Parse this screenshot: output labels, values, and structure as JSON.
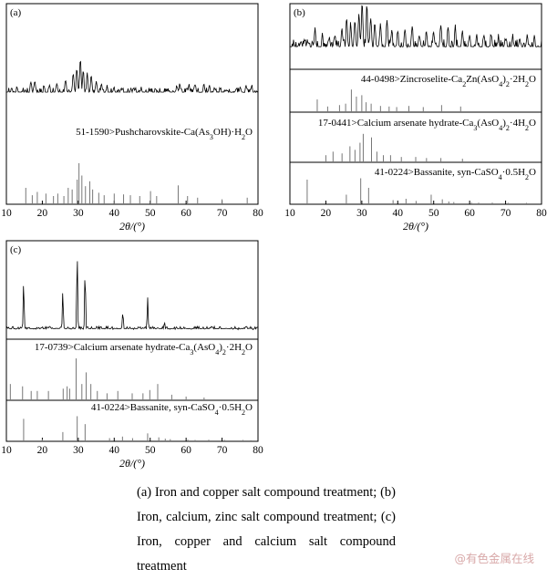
{
  "chart_data": [
    {
      "id": "a",
      "type": "line",
      "panel_label": "(a)",
      "xlabel": "2θ/(°)",
      "xlim": [
        10,
        80
      ],
      "xticks": [
        "10",
        "20",
        "30",
        "40",
        "50",
        "60",
        "70",
        "80"
      ],
      "pattern": {
        "description_baseline": 0.18,
        "peaks": [
          {
            "x": 11.5,
            "y": 0.28
          },
          {
            "x": 13.0,
            "y": 0.3
          },
          {
            "x": 14.5,
            "y": 0.22
          },
          {
            "x": 16.8,
            "y": 0.4
          },
          {
            "x": 17.9,
            "y": 0.38
          },
          {
            "x": 20.5,
            "y": 0.32
          },
          {
            "x": 22.0,
            "y": 0.3
          },
          {
            "x": 24.0,
            "y": 0.35
          },
          {
            "x": 26.5,
            "y": 0.42
          },
          {
            "x": 28.6,
            "y": 0.48
          },
          {
            "x": 29.6,
            "y": 0.58
          },
          {
            "x": 30.6,
            "y": 0.74
          },
          {
            "x": 31.4,
            "y": 0.55
          },
          {
            "x": 32.5,
            "y": 0.5
          },
          {
            "x": 33.6,
            "y": 0.46
          },
          {
            "x": 35.0,
            "y": 0.4
          },
          {
            "x": 36.5,
            "y": 0.34
          },
          {
            "x": 38.0,
            "y": 0.3
          },
          {
            "x": 40.0,
            "y": 0.28
          },
          {
            "x": 42.0,
            "y": 0.25
          },
          {
            "x": 45.5,
            "y": 0.3
          },
          {
            "x": 47.5,
            "y": 0.28
          },
          {
            "x": 50.0,
            "y": 0.26
          },
          {
            "x": 51.5,
            "y": 0.28
          },
          {
            "x": 55.0,
            "y": 0.27
          },
          {
            "x": 57.4,
            "y": 0.3
          },
          {
            "x": 58.2,
            "y": 0.34
          },
          {
            "x": 60.8,
            "y": 0.33
          },
          {
            "x": 62.5,
            "y": 0.33
          },
          {
            "x": 65.0,
            "y": 0.34
          },
          {
            "x": 66.5,
            "y": 0.3
          },
          {
            "x": 68.0,
            "y": 0.28
          },
          {
            "x": 71.0,
            "y": 0.25
          },
          {
            "x": 73.8,
            "y": 0.26
          },
          {
            "x": 75.0,
            "y": 0.3
          },
          {
            "x": 76.7,
            "y": 0.32
          },
          {
            "x": 78.3,
            "y": 0.3
          }
        ]
      },
      "references": [
        {
          "label": "51-1590>Pushcharovskite-Ca(As3OH)·H2O",
          "sticks": [
            {
              "x": 15.4,
              "h": 0.2
            },
            {
              "x": 17.2,
              "h": 0.11
            },
            {
              "x": 18.6,
              "h": 0.15
            },
            {
              "x": 21.0,
              "h": 0.13
            },
            {
              "x": 23.1,
              "h": 0.1
            },
            {
              "x": 24.3,
              "h": 0.13
            },
            {
              "x": 26.0,
              "h": 0.1
            },
            {
              "x": 27.2,
              "h": 0.2
            },
            {
              "x": 28.3,
              "h": 0.18
            },
            {
              "x": 29.7,
              "h": 0.3
            },
            {
              "x": 30.2,
              "h": 0.5
            },
            {
              "x": 31.0,
              "h": 0.35
            },
            {
              "x": 32.0,
              "h": 0.22
            },
            {
              "x": 33.2,
              "h": 0.28
            },
            {
              "x": 34.0,
              "h": 0.18
            },
            {
              "x": 35.7,
              "h": 0.14
            },
            {
              "x": 37.2,
              "h": 0.11
            },
            {
              "x": 40.0,
              "h": 0.13
            },
            {
              "x": 42.6,
              "h": 0.12
            },
            {
              "x": 44.5,
              "h": 0.11
            },
            {
              "x": 47.1,
              "h": 0.1
            },
            {
              "x": 50.1,
              "h": 0.16
            },
            {
              "x": 51.8,
              "h": 0.1
            },
            {
              "x": 57.8,
              "h": 0.23
            },
            {
              "x": 60.4,
              "h": 0.1
            },
            {
              "x": 63.2,
              "h": 0.08
            },
            {
              "x": 70.0,
              "h": 0.06
            },
            {
              "x": 77.0,
              "h": 0.08
            }
          ]
        }
      ]
    },
    {
      "id": "b",
      "type": "line",
      "panel_label": "(b)",
      "xlabel": "2θ/(°)",
      "xlim": [
        10,
        80
      ],
      "xticks": [
        "10",
        "20",
        "30",
        "40",
        "50",
        "60",
        "70",
        "80"
      ],
      "pattern": {
        "description_baseline": 0.3,
        "peaks": [
          {
            "x": 11.0,
            "y": 0.42
          },
          {
            "x": 13.0,
            "y": 0.4
          },
          {
            "x": 15.0,
            "y": 0.45
          },
          {
            "x": 17.0,
            "y": 0.6
          },
          {
            "x": 19.0,
            "y": 0.52
          },
          {
            "x": 21.0,
            "y": 0.5
          },
          {
            "x": 22.5,
            "y": 0.55
          },
          {
            "x": 24.5,
            "y": 0.62
          },
          {
            "x": 25.8,
            "y": 0.78
          },
          {
            "x": 26.9,
            "y": 0.7
          },
          {
            "x": 28.1,
            "y": 0.72
          },
          {
            "x": 29.2,
            "y": 0.85
          },
          {
            "x": 30.1,
            "y": 1.0
          },
          {
            "x": 31.4,
            "y": 0.98
          },
          {
            "x": 32.5,
            "y": 0.8
          },
          {
            "x": 33.6,
            "y": 0.7
          },
          {
            "x": 35.2,
            "y": 0.72
          },
          {
            "x": 37.0,
            "y": 0.75
          },
          {
            "x": 38.3,
            "y": 0.62
          },
          {
            "x": 40.0,
            "y": 0.58
          },
          {
            "x": 42.0,
            "y": 0.6
          },
          {
            "x": 44.0,
            "y": 0.66
          },
          {
            "x": 46.0,
            "y": 0.55
          },
          {
            "x": 48.0,
            "y": 0.6
          },
          {
            "x": 50.0,
            "y": 0.58
          },
          {
            "x": 52.0,
            "y": 0.68
          },
          {
            "x": 54.0,
            "y": 0.62
          },
          {
            "x": 56.0,
            "y": 0.64
          },
          {
            "x": 58.0,
            "y": 0.55
          },
          {
            "x": 60.0,
            "y": 0.52
          },
          {
            "x": 62.0,
            "y": 0.52
          },
          {
            "x": 64.0,
            "y": 0.56
          },
          {
            "x": 66.0,
            "y": 0.56
          },
          {
            "x": 68.0,
            "y": 0.5
          },
          {
            "x": 70.0,
            "y": 0.48
          },
          {
            "x": 72.0,
            "y": 0.52
          },
          {
            "x": 74.0,
            "y": 0.5
          },
          {
            "x": 76.0,
            "y": 0.52
          },
          {
            "x": 78.0,
            "y": 0.48
          }
        ]
      },
      "references": [
        {
          "label": "44-0498>Zincroselite-Ca2Zn(AsO4)2·2H2O",
          "sticks": [
            {
              "x": 17.6,
              "h": 0.45
            },
            {
              "x": 20.5,
              "h": 0.2
            },
            {
              "x": 23.8,
              "h": 0.25
            },
            {
              "x": 25.5,
              "h": 0.3
            },
            {
              "x": 27.1,
              "h": 0.8
            },
            {
              "x": 28.5,
              "h": 0.55
            },
            {
              "x": 30.0,
              "h": 0.6
            },
            {
              "x": 31.2,
              "h": 0.35
            },
            {
              "x": 32.6,
              "h": 0.3
            },
            {
              "x": 35.2,
              "h": 0.22
            },
            {
              "x": 37.6,
              "h": 0.2
            },
            {
              "x": 39.7,
              "h": 0.18
            },
            {
              "x": 43.1,
              "h": 0.22
            },
            {
              "x": 47.1,
              "h": 0.18
            },
            {
              "x": 52.2,
              "h": 0.25
            },
            {
              "x": 57.5,
              "h": 0.2
            }
          ]
        },
        {
          "label": "17-0441>Calcium arsenate hydrate-Ca3(AsO4)2·4H2O",
          "sticks": [
            {
              "x": 20.0,
              "h": 0.2
            },
            {
              "x": 22.0,
              "h": 0.3
            },
            {
              "x": 24.5,
              "h": 0.25
            },
            {
              "x": 26.7,
              "h": 0.45
            },
            {
              "x": 28.1,
              "h": 0.35
            },
            {
              "x": 29.5,
              "h": 0.55
            },
            {
              "x": 30.4,
              "h": 0.8
            },
            {
              "x": 32.7,
              "h": 0.7
            },
            {
              "x": 34.2,
              "h": 0.3
            },
            {
              "x": 36.0,
              "h": 0.2
            },
            {
              "x": 38.0,
              "h": 0.2
            },
            {
              "x": 41.0,
              "h": 0.15
            },
            {
              "x": 45.0,
              "h": 0.15
            },
            {
              "x": 48.0,
              "h": 0.12
            },
            {
              "x": 52.0,
              "h": 0.12
            },
            {
              "x": 58.0,
              "h": 0.1
            }
          ]
        },
        {
          "label": "41-0224>Bassanite, syn-CaSO4·0.5H2O",
          "sticks": [
            {
              "x": 14.8,
              "h": 0.9
            },
            {
              "x": 25.7,
              "h": 0.35
            },
            {
              "x": 29.7,
              "h": 0.95
            },
            {
              "x": 31.9,
              "h": 0.6
            },
            {
              "x": 38.7,
              "h": 0.15
            },
            {
              "x": 42.3,
              "h": 0.2
            },
            {
              "x": 45.1,
              "h": 0.12
            },
            {
              "x": 49.3,
              "h": 0.35
            },
            {
              "x": 52.4,
              "h": 0.18
            },
            {
              "x": 54.2,
              "h": 0.1
            },
            {
              "x": 55.6,
              "h": 0.08
            },
            {
              "x": 60.5,
              "h": 0.06
            },
            {
              "x": 62.5,
              "h": 0.06
            },
            {
              "x": 66.3,
              "h": 0.06
            },
            {
              "x": 70.7,
              "h": 0.05
            },
            {
              "x": 75.8,
              "h": 0.05
            }
          ]
        }
      ]
    },
    {
      "id": "c",
      "type": "line",
      "panel_label": "(c)",
      "xlabel": "2θ/(°)",
      "xlim": [
        10,
        80
      ],
      "xticks": [
        "10",
        "20",
        "30",
        "40",
        "50",
        "60",
        "70",
        "80"
      ],
      "pattern": {
        "description_baseline": 0.1,
        "peaks": [
          {
            "x": 14.8,
            "y": 0.6
          },
          {
            "x": 25.7,
            "y": 0.5
          },
          {
            "x": 29.7,
            "y": 0.88
          },
          {
            "x": 31.9,
            "y": 0.7
          },
          {
            "x": 42.4,
            "y": 0.28
          },
          {
            "x": 49.3,
            "y": 0.42
          },
          {
            "x": 54.0,
            "y": 0.18
          }
        ]
      },
      "references": [
        {
          "label": "17-0739>Calcium arsenate hydrate-Ca3(AsO4)2·2H2O",
          "sticks": [
            {
              "x": 11.1,
              "h": 0.35
            },
            {
              "x": 14.5,
              "h": 0.3
            },
            {
              "x": 16.9,
              "h": 0.2
            },
            {
              "x": 18.6,
              "h": 0.2
            },
            {
              "x": 21.7,
              "h": 0.2
            },
            {
              "x": 25.8,
              "h": 0.25
            },
            {
              "x": 26.9,
              "h": 0.3
            },
            {
              "x": 27.6,
              "h": 0.25
            },
            {
              "x": 29.4,
              "h": 0.9
            },
            {
              "x": 31.0,
              "h": 0.35
            },
            {
              "x": 32.2,
              "h": 0.6
            },
            {
              "x": 33.5,
              "h": 0.35
            },
            {
              "x": 35.3,
              "h": 0.2
            },
            {
              "x": 38.0,
              "h": 0.15
            },
            {
              "x": 41.0,
              "h": 0.2
            },
            {
              "x": 45.0,
              "h": 0.15
            },
            {
              "x": 48.0,
              "h": 0.15
            },
            {
              "x": 49.9,
              "h": 0.22
            },
            {
              "x": 52.1,
              "h": 0.35
            },
            {
              "x": 56.0,
              "h": 0.12
            },
            {
              "x": 60.0,
              "h": 0.08
            },
            {
              "x": 65.0,
              "h": 0.06
            }
          ]
        },
        {
          "label": "41-0224>Bassanite, syn-CaSO4·0.5H2O",
          "sticks": [
            {
              "x": 14.8,
              "h": 0.85
            },
            {
              "x": 20.0,
              "h": 0.08
            },
            {
              "x": 25.7,
              "h": 0.35
            },
            {
              "x": 29.7,
              "h": 0.95
            },
            {
              "x": 31.9,
              "h": 0.65
            },
            {
              "x": 38.7,
              "h": 0.12
            },
            {
              "x": 42.3,
              "h": 0.18
            },
            {
              "x": 45.1,
              "h": 0.12
            },
            {
              "x": 49.3,
              "h": 0.3
            },
            {
              "x": 52.4,
              "h": 0.15
            },
            {
              "x": 54.2,
              "h": 0.1
            },
            {
              "x": 55.6,
              "h": 0.08
            },
            {
              "x": 60.5,
              "h": 0.06
            },
            {
              "x": 62.5,
              "h": 0.05
            },
            {
              "x": 66.3,
              "h": 0.06
            },
            {
              "x": 70.7,
              "h": 0.05
            },
            {
              "x": 75.8,
              "h": 0.05
            },
            {
              "x": 78.0,
              "h": 0.04
            }
          ]
        }
      ]
    }
  ],
  "caption": "(a)  Iron and copper salt compound treatment; (b) Iron, calcium, zinc salt compound treatment; (c) Iron, copper and calcium salt compound treatment",
  "watermark": "@有色金属在线"
}
